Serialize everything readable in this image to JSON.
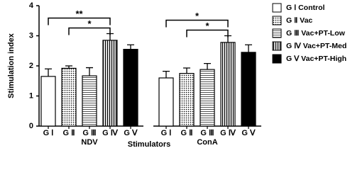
{
  "chart_data": {
    "type": "bar",
    "y_label": "Stimulation index",
    "x_label": "Stimulators",
    "categories": [
      "NDV",
      "ConA"
    ],
    "bar_labels": [
      "G Ⅰ",
      "G Ⅱ",
      "G Ⅲ",
      "G Ⅳ",
      "G Ⅴ"
    ],
    "ylim": [
      0,
      4
    ],
    "yticks": [
      0,
      1,
      2,
      3,
      4
    ],
    "series": [
      {
        "name": "G Ⅰ Control",
        "color": "#ffffff",
        "pattern": "none",
        "values": [
          1.65,
          1.6
        ],
        "errors": [
          0.25,
          0.22
        ]
      },
      {
        "name": "G Ⅱ  Vac",
        "color": "#ffffff",
        "pattern": "dots",
        "values": [
          1.92,
          1.75
        ],
        "errors": [
          0.08,
          0.18
        ]
      },
      {
        "name": "G Ⅲ Vac+PT-Low",
        "color": "#ffffff",
        "pattern": "hatch",
        "values": [
          1.67,
          1.88
        ],
        "errors": [
          0.27,
          0.2
        ]
      },
      {
        "name": "G Ⅳ Vac+PT-Med",
        "color": "#ffffff",
        "pattern": "vertical",
        "values": [
          2.85,
          2.78
        ],
        "errors": [
          0.22,
          0.22
        ]
      },
      {
        "name": "G Ⅴ  Vac+PT-High",
        "color": "#000000",
        "pattern": "none",
        "values": [
          2.55,
          2.45
        ],
        "errors": [
          0.15,
          0.25
        ]
      }
    ],
    "significance": [
      {
        "text": "**",
        "group": 0,
        "from": 0,
        "to": 3
      },
      {
        "text": "*",
        "group": 0,
        "from": 1,
        "to": 3
      },
      {
        "text": "*",
        "group": 1,
        "from": 0,
        "to": 3
      },
      {
        "text": "*",
        "group": 1,
        "from": 1,
        "to": 3
      }
    ]
  }
}
